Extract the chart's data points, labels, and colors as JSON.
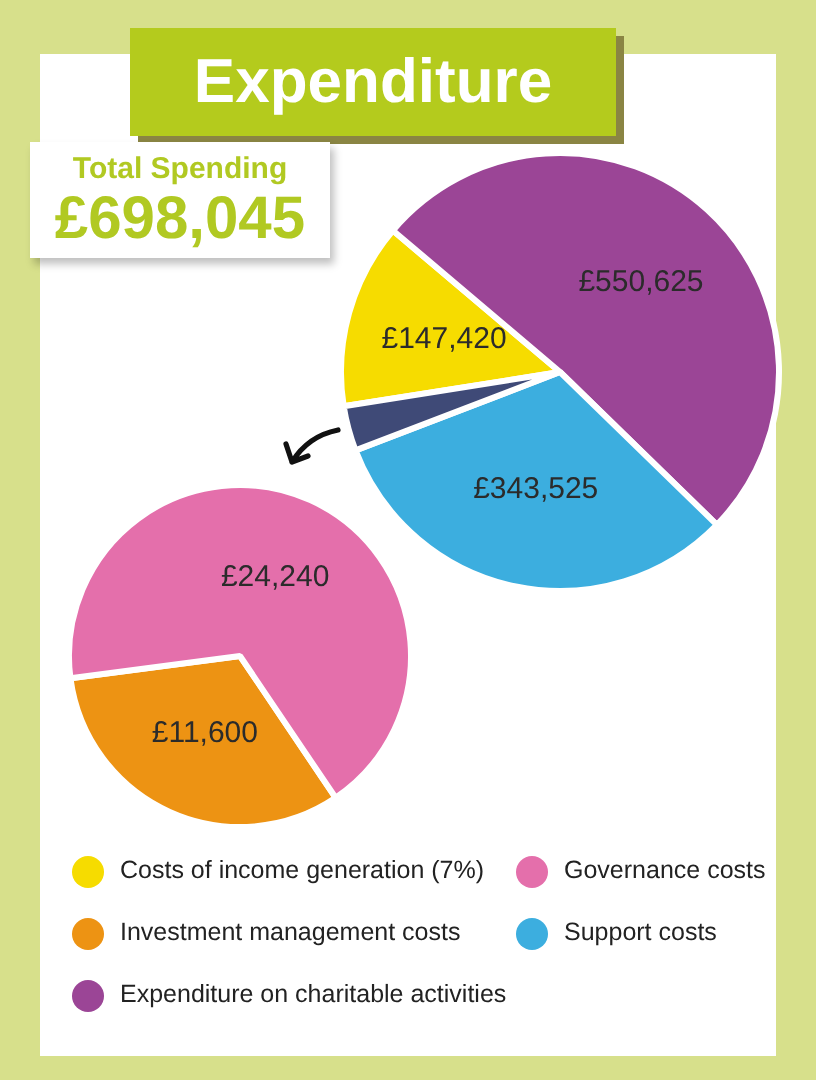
{
  "chart_data": [
    {
      "type": "pie",
      "title": "Expenditure",
      "annotations": [
        "Total Spending",
        "£698,045"
      ],
      "categories": [
        "Costs of income generation (7%)",
        "Expenditure on charitable activities",
        "Support costs",
        null
      ],
      "values": [
        147420,
        550625,
        343525,
        35840
      ],
      "colors": [
        "#f6dc00",
        "#9b4596",
        "#3caedf",
        "#3f4a77"
      ],
      "value_labels": [
        "£147,420",
        "£550,625",
        "£343,525",
        null
      ],
      "legend": "bottom"
    },
    {
      "type": "pie",
      "categories": [
        "Investment management costs",
        "Governance costs"
      ],
      "values": [
        11600,
        24240
      ],
      "colors": [
        "#ed9313",
        "#e46fab"
      ],
      "value_labels": [
        "£11,600",
        "£24,240"
      ],
      "legend": "bottom"
    }
  ]
}
